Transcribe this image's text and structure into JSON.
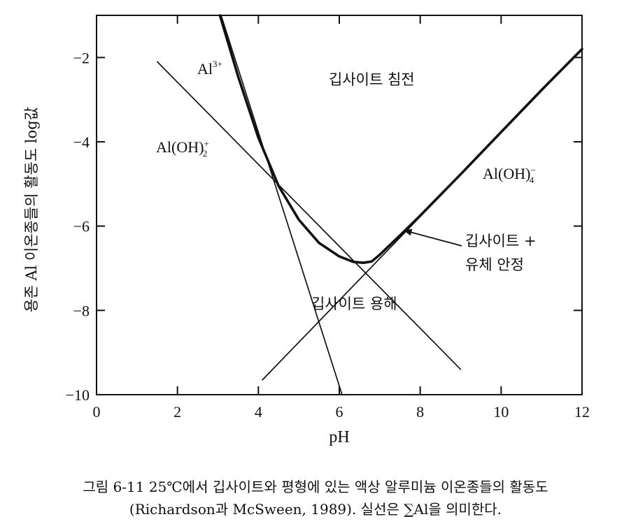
{
  "chart_data": {
    "type": "line",
    "xlabel": "pH",
    "ylabel": "용존 Al 이온종들의 활동도 log값",
    "xlim": [
      0,
      12
    ],
    "ylim": [
      -10,
      -1
    ],
    "x_ticks": [
      0,
      2,
      4,
      6,
      8,
      10,
      12
    ],
    "y_ticks": [
      -2,
      -4,
      -6,
      -8,
      -10
    ],
    "x_tick_labels": [
      "0",
      "2",
      "4",
      "6",
      "8",
      "10",
      "12"
    ],
    "y_tick_labels": [
      "−2",
      "−4",
      "−6",
      "−8",
      "−10"
    ],
    "series": [
      {
        "name": "Al3+",
        "x": [
          3.08,
          6.07
        ],
        "y": [
          -1.0,
          -10.0
        ]
      },
      {
        "name": "Al(OH)2+",
        "x": [
          1.5,
          9.0
        ],
        "y": [
          -2.1,
          -9.4
        ]
      },
      {
        "name": "Al(OH)4-",
        "x": [
          4.1,
          12.0
        ],
        "y": [
          -9.65,
          -1.8
        ]
      },
      {
        "name": "ΣAl",
        "x": [
          3.05,
          3.5,
          4.0,
          4.5,
          5.0,
          5.5,
          6.0,
          6.35,
          6.6,
          6.8,
          7.0,
          7.5,
          8.0,
          9.0,
          10.0,
          11.0,
          12.0
        ],
        "y": [
          -1.0,
          -2.45,
          -3.9,
          -5.05,
          -5.85,
          -6.4,
          -6.72,
          -6.85,
          -6.87,
          -6.84,
          -6.68,
          -6.22,
          -5.75,
          -4.77,
          -3.77,
          -2.77,
          -1.8
        ]
      }
    ],
    "labels": {
      "al3": "Al",
      "al3_sup": "3+",
      "aloh2": "Al(OH)",
      "aloh2_sup": "+",
      "aloh2_sub": "2",
      "aloh4": "Al(OH)",
      "aloh4_sup": "−",
      "aloh4_sub": "4"
    },
    "annotations": {
      "precip": "깁사이트 침전",
      "dissolve": "깁사이트 용해",
      "stable1": "깁사이트 +",
      "stable2": "유체 안정",
      "arrow_to": {
        "x": 7.6,
        "y": -6.1
      }
    }
  },
  "caption": {
    "line1": "그림 6-11  25℃에서 깁사이트와 평형에 있는 액상 알루미늄 이온종들의 활동도",
    "line2": "(Richardson과 McSween, 1989). 실선은 ∑Al을 의미한다."
  },
  "colors": {
    "ink": "#111111",
    "background": "#ffffff"
  }
}
